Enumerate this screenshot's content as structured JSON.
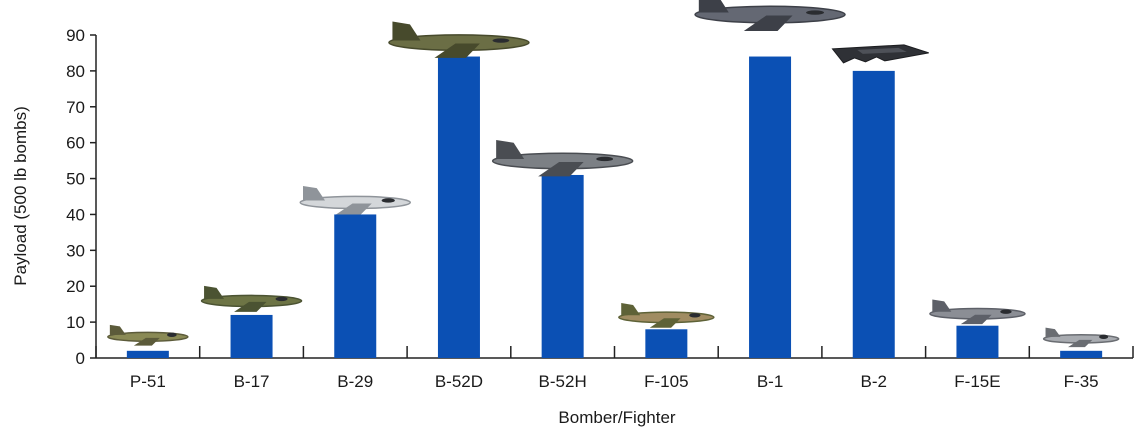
{
  "chart_data": {
    "type": "bar",
    "title": "",
    "xlabel": "Bomber/Fighter",
    "ylabel": "Payload (500 lb bombs)",
    "ylim": [
      0,
      90
    ],
    "yticks": [
      0,
      10,
      20,
      30,
      40,
      50,
      60,
      70,
      80,
      90
    ],
    "categories": [
      "P-51",
      "B-17",
      "B-29",
      "B-52D",
      "B-52H",
      "F-105",
      "B-1",
      "B-2",
      "F-15E",
      "F-35"
    ],
    "values": [
      2,
      12,
      40,
      84,
      51,
      8,
      84,
      80,
      9,
      2
    ],
    "bar_color": "#0b50b4",
    "grid": false,
    "legend": "none",
    "aircraft_icons": [
      "p51-fighter-icon",
      "b17-bomber-icon",
      "b29-bomber-icon",
      "b52d-bomber-icon",
      "b52h-bomber-icon",
      "f105-fighter-icon",
      "b1-bomber-icon",
      "b2-stealth-bomber-icon",
      "f15e-fighter-icon",
      "f35-fighter-icon"
    ]
  }
}
